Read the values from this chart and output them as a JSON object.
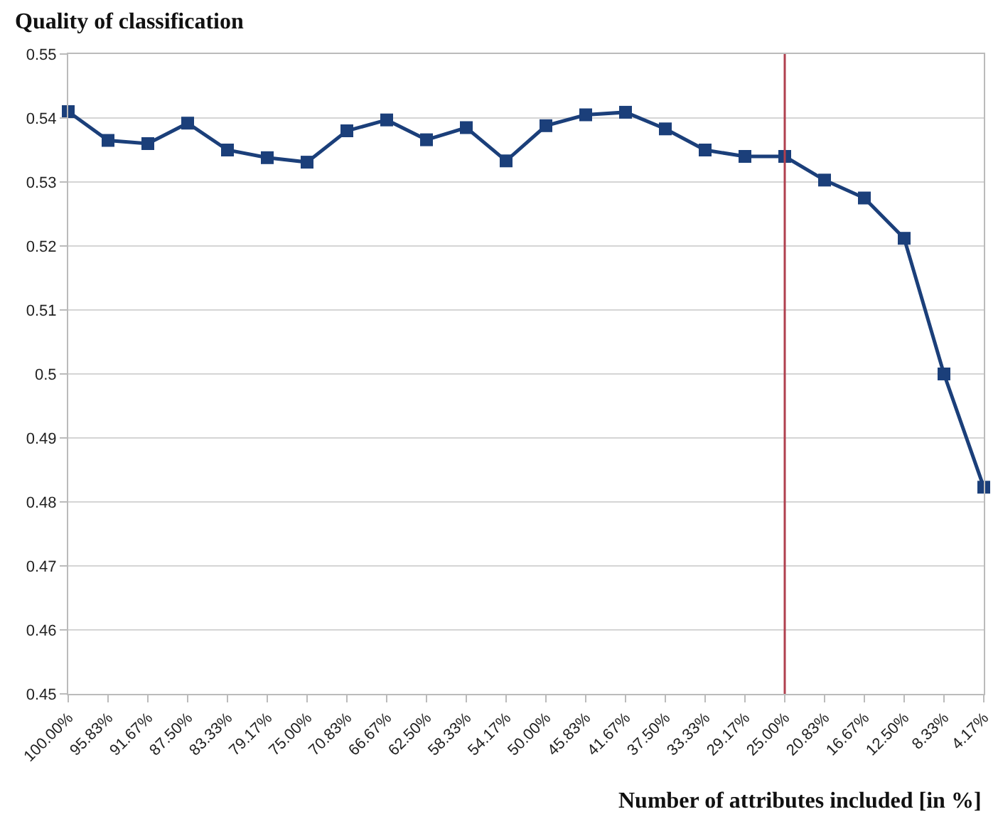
{
  "chart_data": {
    "type": "line",
    "title": "Quality of classification",
    "xlabel": "Number of attributes included [in %]",
    "categories": [
      "100.00%",
      "95.83%",
      "91.67%",
      "87.50%",
      "83.33%",
      "79.17%",
      "75.00%",
      "70.83%",
      "66.67%",
      "62.50%",
      "58.33%",
      "54.17%",
      "50.00%",
      "45.83%",
      "41.67%",
      "37.50%",
      "33.33%",
      "29.17%",
      "25.00%",
      "20.83%",
      "16.67%",
      "12.50%",
      "8.33%",
      "4.17%"
    ],
    "series": [
      {
        "color": "#1b3f7a",
        "values": [
          0.541,
          0.5365,
          0.536,
          0.5392,
          0.535,
          0.5338,
          0.5331,
          0.538,
          0.5397,
          0.5366,
          0.5385,
          0.5333,
          0.5388,
          0.5405,
          0.5409,
          0.5383,
          0.535,
          0.534,
          0.534,
          0.5303,
          0.5275,
          0.5212,
          0.5,
          0.4823
        ]
      }
    ],
    "ylim": [
      0.45,
      0.55
    ],
    "yticks": [
      0.45,
      0.46,
      0.47,
      0.48,
      0.49,
      0.5,
      0.51,
      0.52,
      0.53,
      0.54,
      0.55
    ],
    "ref_lines": [
      {
        "axis": "x",
        "value": "25.00%",
        "color": "#b0404f"
      }
    ],
    "grid": "y",
    "marker": "square",
    "line_style": "solid"
  }
}
